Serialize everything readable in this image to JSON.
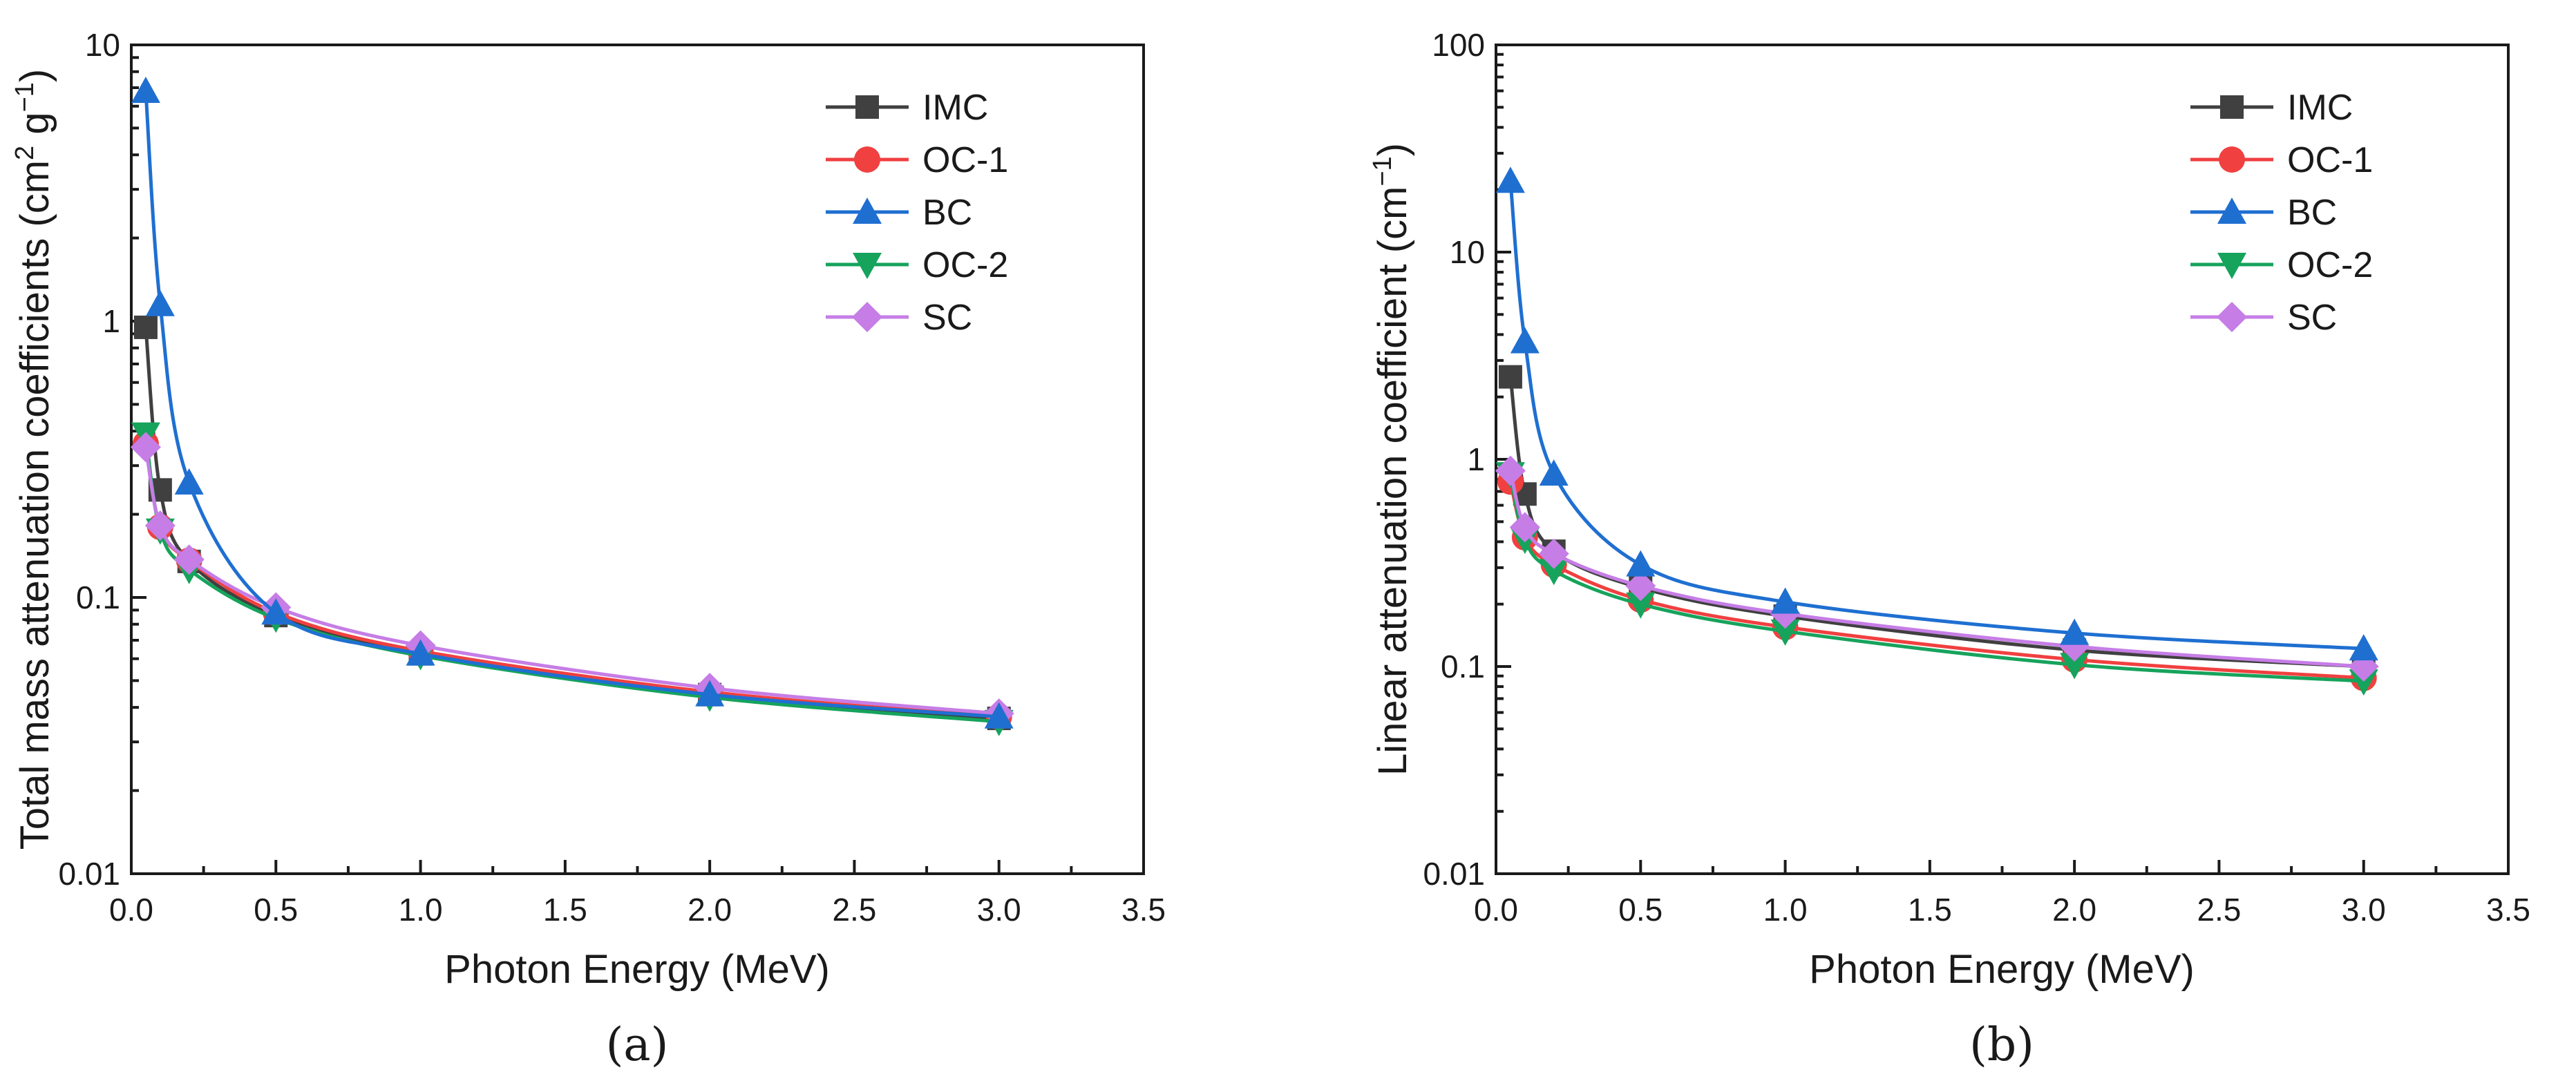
{
  "chart_data": [
    {
      "type": "line",
      "panel_label": "(a)",
      "xlabel": "Photon Energy (MeV)",
      "ylabel_main": "Total mass attenuation coefficients (cm",
      "ylabel_sup1": "2",
      "ylabel_mid": " g",
      "ylabel_sup2": "−1",
      "ylabel_end": ")",
      "xlim": [
        0.0,
        3.5
      ],
      "ylim": [
        0.01,
        10
      ],
      "yscale": "log",
      "grid": false,
      "legend_position": "top-right",
      "x_ticks": [
        "0.0",
        "0.5",
        "1.0",
        "1.5",
        "2.0",
        "2.5",
        "3.0",
        "3.5"
      ],
      "y_ticks": [
        "0.01",
        "0.1",
        "1",
        "10"
      ],
      "x": [
        0.05,
        0.1,
        0.2,
        0.5,
        1.0,
        2.0,
        3.0
      ],
      "series": [
        {
          "name": "IMC",
          "color": "#404040",
          "marker": "square",
          "values": [
            0.95,
            0.245,
            0.135,
            0.086,
            0.0625,
            0.0445,
            0.0365
          ]
        },
        {
          "name": "OC-1",
          "color": "#f04040",
          "marker": "circle",
          "values": [
            0.36,
            0.18,
            0.136,
            0.088,
            0.064,
            0.0455,
            0.037
          ]
        },
        {
          "name": "BC",
          "color": "#1f6fd1",
          "marker": "triangle-up",
          "values": [
            6.8,
            1.15,
            0.26,
            0.088,
            0.0625,
            0.0445,
            0.037
          ]
        },
        {
          "name": "OC-2",
          "color": "#16a35c",
          "marker": "triangle-down",
          "values": [
            0.39,
            0.175,
            0.126,
            0.084,
            0.0615,
            0.0435,
            0.0355
          ]
        },
        {
          "name": "SC",
          "color": "#c67de6",
          "marker": "diamond",
          "values": [
            0.35,
            0.182,
            0.137,
            0.092,
            0.067,
            0.047,
            0.038
          ]
        }
      ]
    },
    {
      "type": "line",
      "panel_label": "(b)",
      "xlabel": "Photon Energy (MeV)",
      "ylabel_main": "Linear attenuation coefficient (cm",
      "ylabel_sup1": "−1",
      "ylabel_mid": "",
      "ylabel_sup2": "",
      "ylabel_end": ")",
      "xlim": [
        0.0,
        3.5
      ],
      "ylim": [
        0.01,
        100
      ],
      "yscale": "log",
      "grid": false,
      "legend_position": "top-right",
      "x_ticks": [
        "0.0",
        "0.5",
        "1.0",
        "1.5",
        "2.0",
        "2.5",
        "3.0",
        "3.5"
      ],
      "y_ticks": [
        "0.01",
        "0.1",
        "1",
        "10",
        "100"
      ],
      "x": [
        0.05,
        0.1,
        0.2,
        0.5,
        1.0,
        2.0,
        3.0
      ],
      "series": [
        {
          "name": "IMC",
          "color": "#404040",
          "marker": "square",
          "values": [
            2.5,
            0.68,
            0.36,
            0.24,
            0.175,
            0.12,
            0.1
          ]
        },
        {
          "name": "OC-1",
          "color": "#f04040",
          "marker": "circle",
          "values": [
            0.78,
            0.42,
            0.31,
            0.21,
            0.155,
            0.108,
            0.088
          ]
        },
        {
          "name": "BC",
          "color": "#1f6fd1",
          "marker": "triangle-up",
          "values": [
            22,
            3.7,
            0.85,
            0.31,
            0.205,
            0.145,
            0.122
          ]
        },
        {
          "name": "OC-2",
          "color": "#16a35c",
          "marker": "triangle-down",
          "values": [
            0.85,
            0.41,
            0.29,
            0.2,
            0.148,
            0.102,
            0.085
          ]
        },
        {
          "name": "SC",
          "color": "#c67de6",
          "marker": "diamond",
          "values": [
            0.88,
            0.47,
            0.35,
            0.245,
            0.18,
            0.125,
            0.1
          ]
        }
      ]
    }
  ]
}
